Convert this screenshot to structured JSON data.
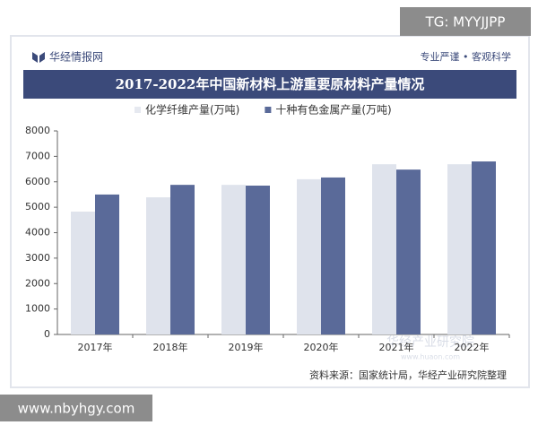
{
  "overlay_top": "TG: MYYJJPP",
  "overlay_bottom": "www.nbyhgy.com",
  "header": {
    "brand": "华经情报网",
    "slogan": "专业严谨 • 客观科学"
  },
  "watermark": {
    "name": "华经产业研究院",
    "url": "www.huaon.com"
  },
  "source": "资料来源：国家统计局，华经产业研究院整理",
  "chart_data": {
    "type": "bar",
    "title": "2017-2022年中国新材料上游重要原材料产量情况",
    "categories": [
      "2017年",
      "2018年",
      "2019年",
      "2020年",
      "2021年",
      "2022年"
    ],
    "series": [
      {
        "name": "化学纤维产量(万吨)",
        "color": "#dfe3ec",
        "values": [
          4830,
          5390,
          5880,
          6100,
          6690,
          6690
        ]
      },
      {
        "name": "十种有色金属产量(万吨)",
        "color": "#5a6a99",
        "values": [
          5500,
          5880,
          5850,
          6170,
          6480,
          6800
        ]
      }
    ],
    "ylim": [
      0,
      8000
    ],
    "yticks": [
      0,
      1000,
      2000,
      3000,
      4000,
      5000,
      6000,
      7000,
      8000
    ],
    "grid": false,
    "legend": "top-left"
  }
}
